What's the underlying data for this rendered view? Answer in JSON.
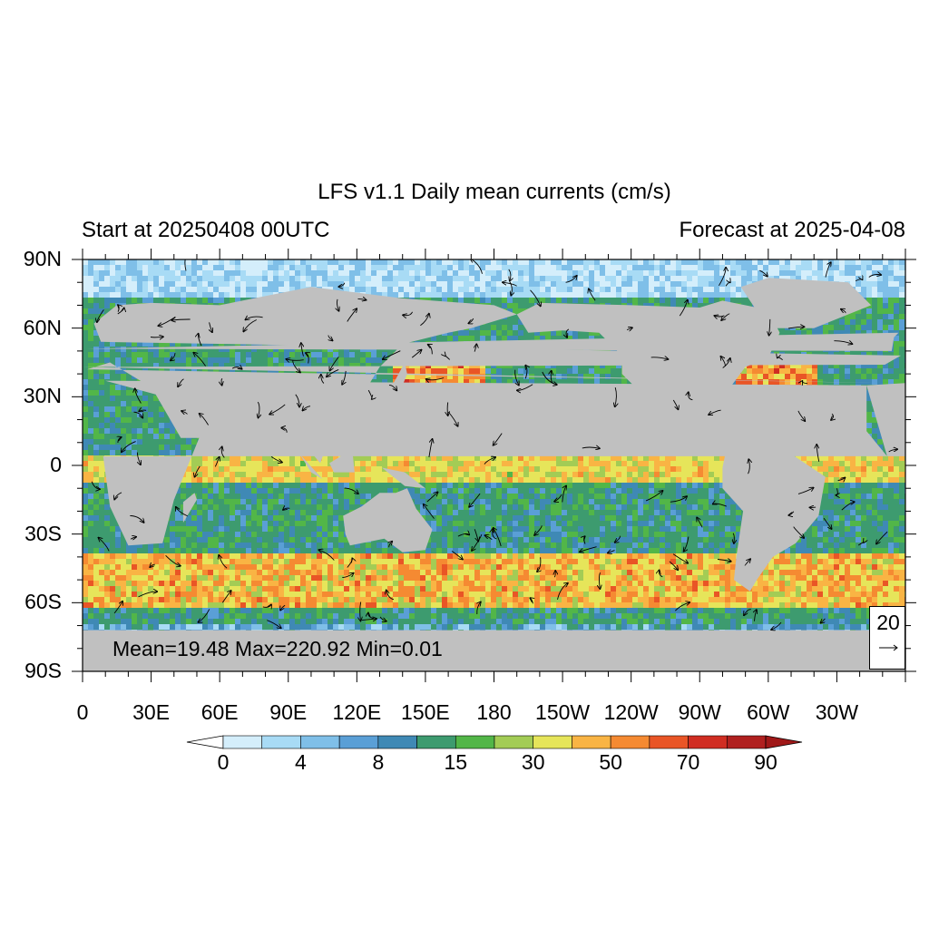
{
  "header": {
    "title": "LFS v1.1 Daily mean currents (cm/s)",
    "left_subtitle": "Start at 20250408 00UTC",
    "right_subtitle": "Forecast at 2025-04-08"
  },
  "map": {
    "type": "heatmap",
    "projection": "cylindrical equidistant",
    "lat_range": [
      -90,
      90
    ],
    "lon_range": [
      0,
      360
    ],
    "lat_ticks": [
      "90N",
      "60N",
      "30N",
      "0",
      "30S",
      "60S",
      "90S"
    ],
    "lon_ticks": [
      "0",
      "30E",
      "60E",
      "90E",
      "120E",
      "150E",
      "180",
      "150W",
      "120W",
      "90W",
      "60W",
      "30W"
    ],
    "land_color": "#c0c0c0",
    "stats_text": "Mean=19.48  Max=220.92  Min=0.01",
    "reference_vector": {
      "value": "20",
      "glyph": "→"
    }
  },
  "colorbar": {
    "levels": [
      0,
      2,
      4,
      6,
      8,
      10,
      15,
      20,
      30,
      40,
      50,
      60,
      70,
      80,
      90
    ],
    "labels": [
      "0",
      "4",
      "8",
      "15",
      "30",
      "50",
      "70",
      "90"
    ],
    "colors": [
      "#ffffff",
      "#d4eefb",
      "#a8dbf5",
      "#7fbfe8",
      "#5a9fd6",
      "#3f89b5",
      "#3d9b6f",
      "#52b648",
      "#a3cc55",
      "#e6e55a",
      "#f9b444",
      "#f58a32",
      "#e95526",
      "#d02d22",
      "#b0201f",
      "#a01818"
    ]
  }
}
